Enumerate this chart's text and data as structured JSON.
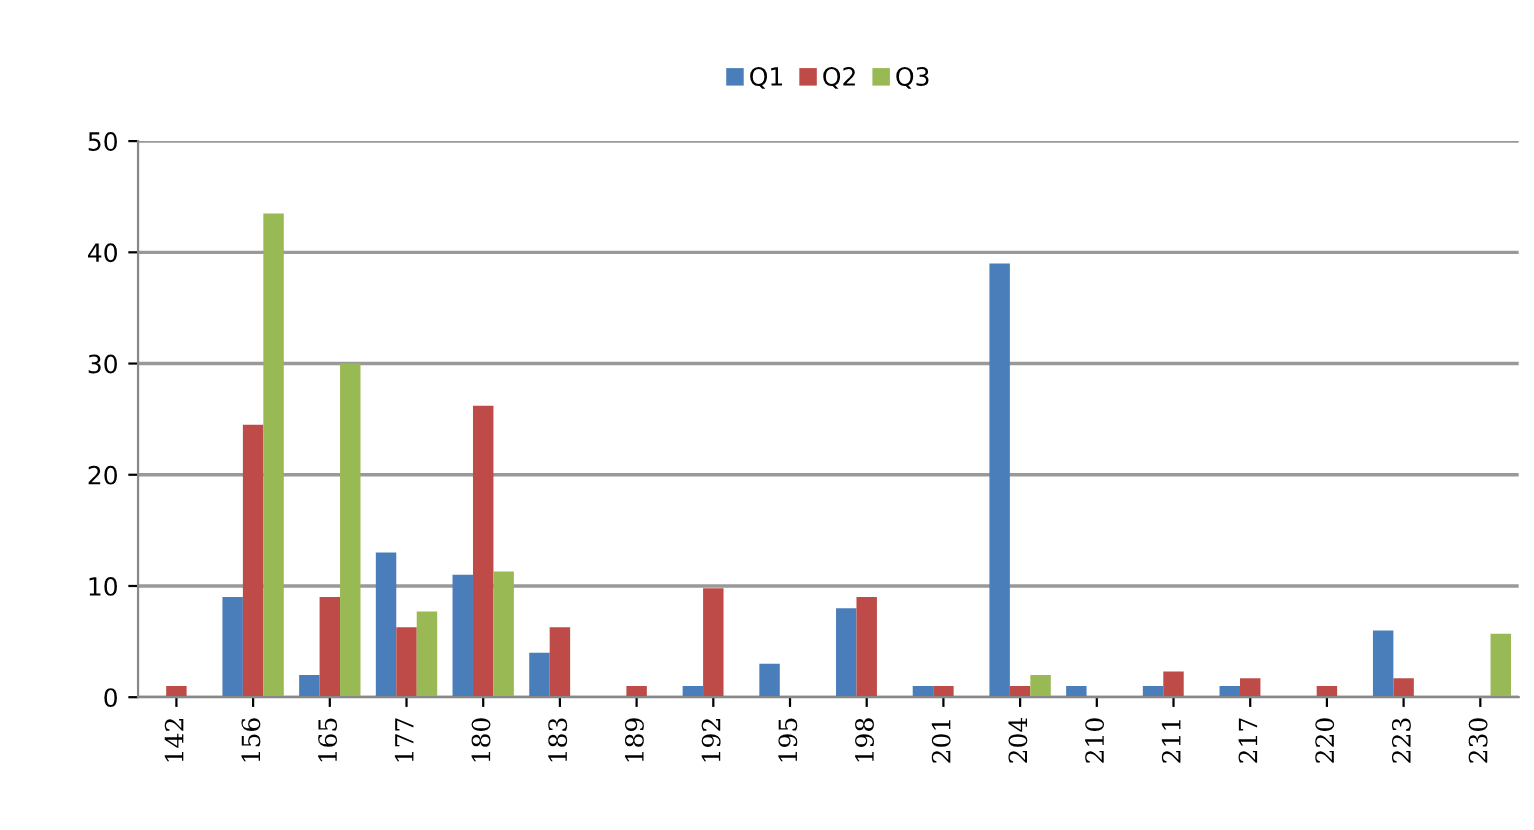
{
  "chart_data": {
    "type": "bar",
    "categories": [
      "142",
      "156",
      "165",
      "177",
      "180",
      "183",
      "189",
      "192",
      "195",
      "198",
      "201",
      "204",
      "210",
      "211",
      "217",
      "220",
      "223",
      "230"
    ],
    "series": [
      {
        "name": "Q1",
        "color": "#4a7ebb",
        "values": [
          0,
          9,
          2,
          13,
          11,
          4,
          0,
          1,
          3,
          8,
          1,
          39,
          1,
          1,
          1,
          0,
          6,
          0
        ]
      },
      {
        "name": "Q2",
        "color": "#be4b48",
        "values": [
          1,
          24.5,
          9,
          6.3,
          26.2,
          6.3,
          1,
          9.8,
          0,
          9,
          1,
          1,
          0,
          2.3,
          1.7,
          1,
          1.7,
          0
        ]
      },
      {
        "name": "Q3",
        "color": "#98b954",
        "values": [
          0,
          43.5,
          30,
          7.7,
          11.3,
          0,
          0,
          0,
          0,
          0,
          0,
          2,
          0,
          0,
          0,
          0,
          0,
          5.7
        ]
      }
    ],
    "ylim": [
      0,
      50
    ],
    "yticks": [
      0,
      10,
      20,
      30,
      40,
      50
    ],
    "grid": "y",
    "legend": "top"
  }
}
